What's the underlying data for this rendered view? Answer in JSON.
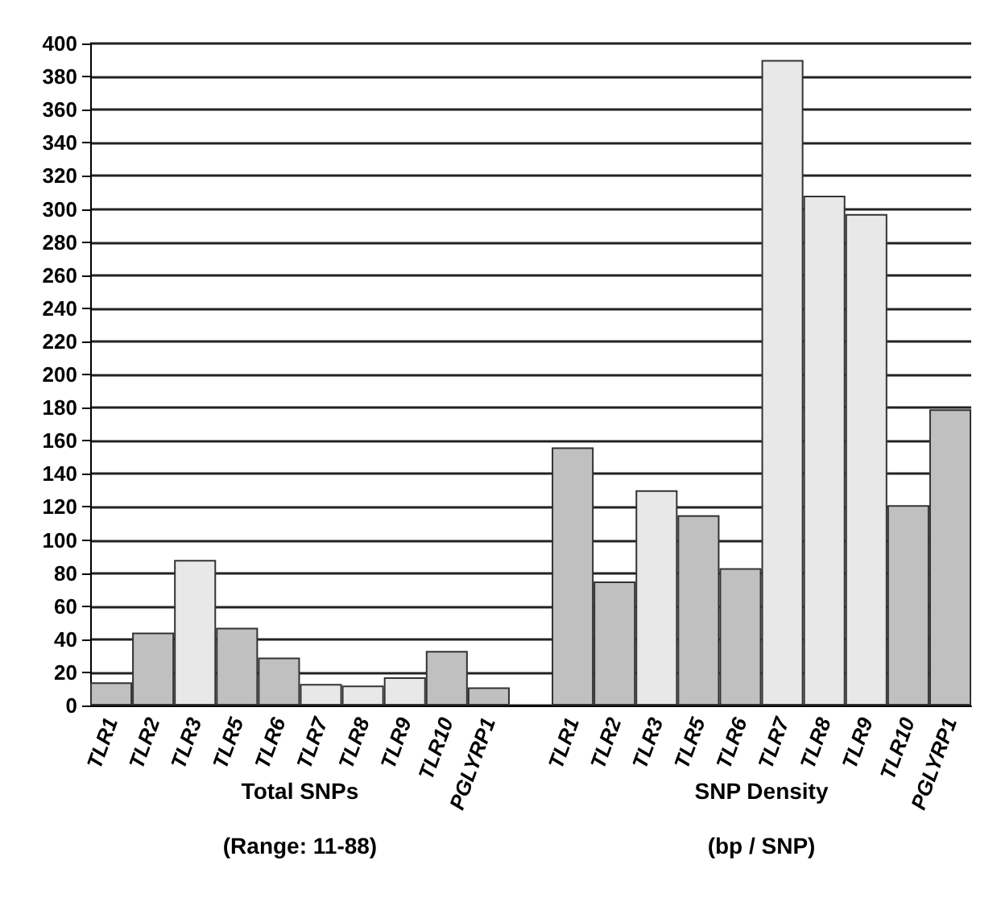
{
  "chart_data": {
    "type": "bar",
    "categories": [
      "TLR1",
      "TLR2",
      "TLR3",
      "TLR5",
      "TLR6",
      "TLR7",
      "TLR8",
      "TLR9",
      "TLR10",
      "PGLYRP1",
      null,
      "TLR1",
      "TLR2",
      "TLR3",
      "TLR5",
      "TLR6",
      "TLR7",
      "TLR8",
      "TLR9",
      "TLR10",
      "PGLYRP1"
    ],
    "values": [
      14,
      44,
      88,
      47,
      29,
      13,
      12,
      17,
      33,
      11,
      null,
      156,
      75,
      130,
      115,
      83,
      390,
      308,
      297,
      121,
      179
    ],
    "colors": [
      "#c0c0c0",
      "#c0c0c0",
      "#e8e8e8",
      "#c0c0c0",
      "#c0c0c0",
      "#e8e8e8",
      "#e8e8e8",
      "#e8e8e8",
      "#c0c0c0",
      "#c0c0c0",
      "#c0c0c0",
      "#c0c0c0",
      "#c0c0c0",
      "#e8e8e8",
      "#c0c0c0",
      "#c0c0c0",
      "#e8e8e8",
      "#e8e8e8",
      "#e8e8e8",
      "#c0c0c0",
      "#c0c0c0"
    ],
    "ylim": [
      0,
      400
    ],
    "yticks": [
      0,
      20,
      40,
      60,
      80,
      100,
      120,
      140,
      160,
      180,
      200,
      220,
      240,
      260,
      280,
      300,
      320,
      340,
      360,
      380,
      400
    ],
    "grid": "y",
    "annotations": [
      "Total SNPs",
      "(Range: 11-88)",
      "SNP Density",
      "(bp / SNP)"
    ]
  }
}
